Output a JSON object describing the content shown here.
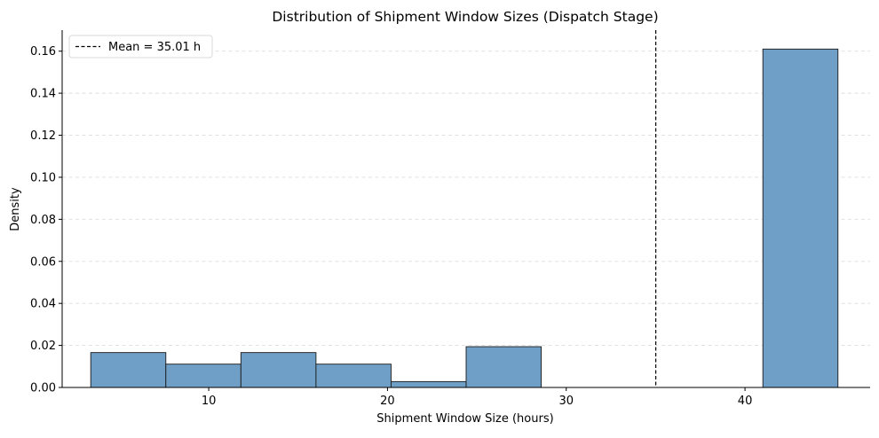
{
  "chart_data": {
    "type": "bar",
    "title": "Distribution of Shipment Window Sizes (Dispatch Stage)",
    "xlabel": "Shipment Window Size (hours)",
    "ylabel": "Density",
    "xlim": [
      1.8,
      47.0
    ],
    "ylim": [
      0,
      0.17
    ],
    "x_ticks": [
      10,
      20,
      30,
      40
    ],
    "y_ticks": [
      0.0,
      0.02,
      0.04,
      0.06,
      0.08,
      0.1,
      0.12,
      0.14,
      0.16
    ],
    "y_tick_labels": [
      "0.00",
      "0.02",
      "0.04",
      "0.06",
      "0.08",
      "0.10",
      "0.12",
      "0.14",
      "0.16"
    ],
    "grid": "horizontal-dashed",
    "legend_position": "top-left",
    "bar_color": "#6f9fc6",
    "bar_edge_color": "#1a1a1a",
    "bins": [
      {
        "x0": 3.4,
        "x1": 7.6,
        "density": 0.0166
      },
      {
        "x0": 7.6,
        "x1": 11.8,
        "density": 0.0111
      },
      {
        "x0": 11.8,
        "x1": 16.0,
        "density": 0.0166
      },
      {
        "x0": 16.0,
        "x1": 20.2,
        "density": 0.0111
      },
      {
        "x0": 20.2,
        "x1": 24.4,
        "density": 0.0028
      },
      {
        "x0": 24.4,
        "x1": 28.6,
        "density": 0.0194
      },
      {
        "x0": 28.6,
        "x1": 32.8,
        "density": 0
      },
      {
        "x0": 32.8,
        "x1": 37.0,
        "density": 0
      },
      {
        "x0": 37.0,
        "x1": 41.0,
        "density": 0
      },
      {
        "x0": 41.0,
        "x1": 45.2,
        "density": 0.161
      }
    ],
    "mean_line": {
      "x": 35.01,
      "label": "Mean = 35.01 h",
      "color": "#000000"
    }
  }
}
